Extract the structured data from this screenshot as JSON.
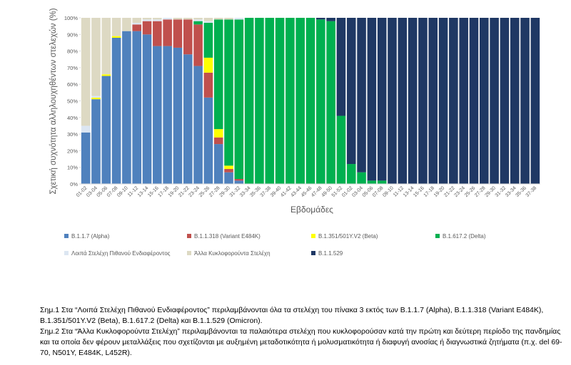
{
  "chart_data": {
    "type": "stacked_bar",
    "y_label": "Σχετική συχνότητα αλληλουχηθέντων στελεχών (%)",
    "x_label": "Εβδομάδες",
    "categories": [
      "01-02",
      "03-04",
      "05-06",
      "07-08",
      "09-10",
      "11-12",
      "13-14",
      "15-16",
      "17-18",
      "19-20",
      "21-22",
      "23-24",
      "25-26",
      "27-28",
      "29-30",
      "31-32",
      "33-34",
      "35-36",
      "37-38",
      "39-40",
      "41-42",
      "43-44",
      "45-46",
      "47-48",
      "49-50",
      "51-52",
      "01-02",
      "03-04",
      "05-06",
      "07-08",
      "09-10",
      "11-12",
      "13-14",
      "15-16",
      "17-18",
      "19-20",
      "21-22",
      "23-24",
      "25-26",
      "27-28",
      "29-30",
      "31-32",
      "33-34",
      "35-36",
      "37-38"
    ],
    "series": [
      {
        "name": "B.1.1.7 (Alpha)",
        "color": "#4f81bd",
        "values": [
          31,
          51,
          65,
          88,
          92,
          92,
          90,
          83,
          83,
          82,
          78,
          71,
          52,
          24,
          7,
          2,
          0,
          0,
          0,
          0,
          0,
          0,
          0,
          0,
          0,
          0,
          0,
          0,
          0,
          0,
          0,
          0,
          0,
          0,
          0,
          0,
          0,
          0,
          0,
          0,
          0,
          0,
          0,
          0,
          0
        ]
      },
      {
        "name": "B.1.1.318 (Variant E484K)",
        "color": "#c0504d",
        "values": [
          0,
          0,
          0,
          0,
          0,
          4,
          8,
          15,
          16,
          17,
          21,
          25,
          15,
          4,
          2,
          1,
          0,
          0,
          0,
          0,
          0,
          0,
          0,
          0,
          0,
          0,
          0,
          0,
          0,
          0,
          0,
          0,
          0,
          0,
          0,
          0,
          0,
          0,
          0,
          0,
          0,
          0,
          0,
          0,
          0
        ]
      },
      {
        "name": "B.1.351/501Y.V2 (Beta)",
        "color": "#ffff00",
        "values": [
          0,
          1,
          1,
          1,
          0,
          0,
          0,
          0,
          0,
          0,
          0,
          0,
          9,
          5,
          2,
          0,
          0,
          0,
          0,
          0,
          0,
          0,
          0,
          0,
          0,
          0,
          0,
          0,
          0,
          0,
          0,
          0,
          0,
          0,
          0,
          0,
          0,
          0,
          0,
          0,
          0,
          0,
          0,
          0,
          0
        ]
      },
      {
        "name": "B.1.617.2 (Delta)",
        "color": "#00b050",
        "values": [
          0,
          0,
          0,
          0,
          0,
          0,
          0,
          0,
          0,
          0,
          0,
          2,
          21,
          66,
          88,
          96,
          100,
          100,
          100,
          100,
          100,
          100,
          100,
          99,
          98,
          41,
          12,
          7,
          2,
          2,
          0,
          0,
          0,
          0,
          0,
          0,
          0,
          0,
          0,
          0,
          0,
          0,
          0,
          0,
          0
        ]
      },
      {
        "name": "Λοιπά Στελέχη Πιθανού Ενδιαφέροντος",
        "color": "#dce6f2",
        "values": [
          4,
          1,
          0,
          0,
          0,
          1,
          1,
          1,
          1,
          0,
          0,
          1,
          1,
          0,
          0,
          1,
          0,
          0,
          0,
          0,
          0,
          0,
          0,
          0,
          0,
          0,
          0,
          0,
          0,
          0,
          0,
          0,
          0,
          0,
          0,
          0,
          0,
          0,
          0,
          0,
          0,
          0,
          0,
          0,
          0
        ]
      },
      {
        "name": "Άλλα Κυκλοφορούντα Στελέχη",
        "color": "#ddd9c3",
        "values": [
          65,
          47,
          34,
          11,
          8,
          3,
          1,
          1,
          0,
          1,
          1,
          1,
          2,
          1,
          1,
          0,
          0,
          0,
          0,
          0,
          0,
          0,
          0,
          0,
          0,
          0,
          0,
          0,
          0,
          0,
          0,
          0,
          0,
          0,
          0,
          0,
          0,
          0,
          0,
          0,
          0,
          0,
          0,
          0,
          0
        ]
      },
      {
        "name": "B.1.1.529",
        "color": "#1f3864",
        "values": [
          0,
          0,
          0,
          0,
          0,
          0,
          0,
          0,
          0,
          0,
          0,
          0,
          0,
          0,
          0,
          0,
          0,
          0,
          0,
          0,
          0,
          0,
          0,
          1,
          2,
          59,
          88,
          93,
          98,
          98,
          100,
          100,
          100,
          100,
          100,
          100,
          100,
          100,
          100,
          100,
          100,
          100,
          100,
          100,
          100
        ]
      }
    ],
    "ylim": [
      0,
      100
    ],
    "yticks": [
      {
        "value": 0,
        "label": "0%"
      },
      {
        "value": 10,
        "label": "10%"
      },
      {
        "value": 20,
        "label": "20%"
      },
      {
        "value": 30,
        "label": "30%"
      },
      {
        "value": 40,
        "label": "40%"
      },
      {
        "value": 50,
        "label": "50%"
      },
      {
        "value": 60,
        "label": "60%"
      },
      {
        "value": 70,
        "label": "70%"
      },
      {
        "value": 80,
        "label": "80%"
      },
      {
        "value": 90,
        "label": "90%"
      },
      {
        "value": 100,
        "label": "100%"
      }
    ],
    "grid": false,
    "legend": "bottom"
  },
  "notes": [
    "Σημ.1 Στα “Λοιπά Στελέχη Πιθανού Ενδιαφέροντος” περιλαμβάνονται όλα τα στελέχη του πίνακα 3 εκτός των B.1.1.7 (Alpha), B.1.1.318  (Variant E484K), B.1.351/501Y.V2 (Beta), B.1.617.2 (Delta) και B.1.1.529 (Omicron).",
    "Σημ.2 Στα “Άλλα Κυκλοφορούντα Στελέχη” περιλαμβάνονται τα παλαιότερα στελέχη που κυκλοφορούσαν κατά την πρώτη και δεύτερη περίοδο της πανδημίας και τα οποία δεν φέρουν μεταλλάξεις που σχετίζονται με αυξημένη μεταδοτικότητα ή μολυσματικότητα ή διαφυγή ανοσίας ή διαγνωστικά ζητήματα (π.χ. del 69-70, N501Y, E484K, L452R)."
  ]
}
